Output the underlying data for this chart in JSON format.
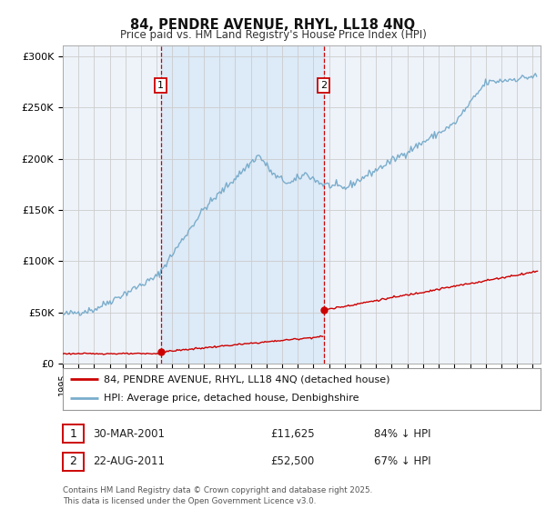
{
  "title": "84, PENDRE AVENUE, RHYL, LL18 4NQ",
  "subtitle": "Price paid vs. HM Land Registry's House Price Index (HPI)",
  "ylabel_ticks": [
    "£0",
    "£50K",
    "£100K",
    "£150K",
    "£200K",
    "£250K",
    "£300K"
  ],
  "ytick_values": [
    0,
    50000,
    100000,
    150000,
    200000,
    250000,
    300000
  ],
  "ylim": [
    0,
    310000
  ],
  "xlim_start": 1995.0,
  "xlim_end": 2025.5,
  "legend_line1": "84, PENDRE AVENUE, RHYL, LL18 4NQ (detached house)",
  "legend_line2": "HPI: Average price, detached house, Denbighshire",
  "line1_color": "#cc0000",
  "line2_color": "#7aadcc",
  "marker1_date": 2001.25,
  "marker1_price": 11625,
  "marker2_date": 2011.65,
  "marker2_price": 52500,
  "vline1_x": 2001.25,
  "vline2_x": 2011.65,
  "footer": "Contains HM Land Registry data © Crown copyright and database right 2025.\nThis data is licensed under the Open Government Licence v3.0.",
  "table_row1": [
    "1",
    "30-MAR-2001",
    "£11,625",
    "84% ↓ HPI"
  ],
  "table_row2": [
    "2",
    "22-AUG-2011",
    "£52,500",
    "67% ↓ HPI"
  ],
  "bg_color": "#ffffff",
  "plot_bg": "#eef3fa",
  "grid_color": "#cccccc",
  "vline_color": "#cc0000",
  "span_color": "#ddeaf7"
}
